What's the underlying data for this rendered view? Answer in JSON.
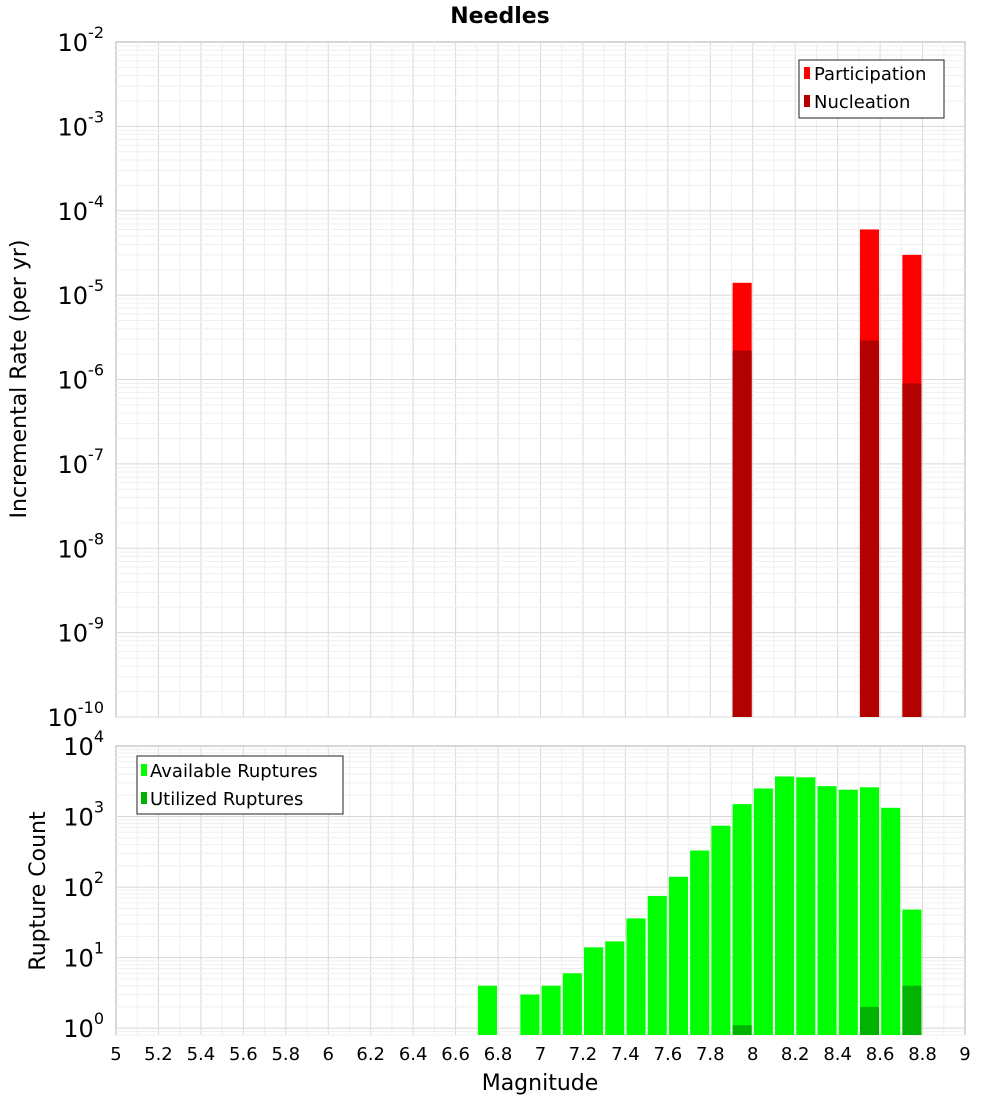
{
  "page_title": "Needles",
  "colors": {
    "participation": "#ff0000",
    "nucleation": "#b30000",
    "available": "#00ff00",
    "utilized": "#00b300"
  },
  "x_axis": {
    "label": "Magnitude",
    "range": [
      5,
      9
    ],
    "ticks": [
      "5",
      "5.2",
      "5.4",
      "5.6",
      "5.8",
      "6",
      "6.2",
      "6.4",
      "6.6",
      "6.8",
      "7",
      "7.2",
      "7.4",
      "7.6",
      "7.8",
      "8",
      "8.2",
      "8.4",
      "8.6",
      "8.8",
      "9"
    ]
  },
  "chart_data": [
    {
      "type": "bar",
      "title": "Needles",
      "xlabel": "Magnitude",
      "ylabel": "Incremental Rate (per yr)",
      "yscale": "log",
      "ylim": [
        1e-10,
        0.01
      ],
      "xlim": [
        5,
        9
      ],
      "bar_width": 0.09,
      "y_ticks": [
        {
          "base": "10",
          "exp": "-10",
          "value": 1e-10
        },
        {
          "base": "10",
          "exp": "-9",
          "value": 1e-09
        },
        {
          "base": "10",
          "exp": "-8",
          "value": 1e-08
        },
        {
          "base": "10",
          "exp": "-7",
          "value": 1e-07
        },
        {
          "base": "10",
          "exp": "-6",
          "value": 1e-06
        },
        {
          "base": "10",
          "exp": "-5",
          "value": 1e-05
        },
        {
          "base": "10",
          "exp": "-4",
          "value": 0.0001
        },
        {
          "base": "10",
          "exp": "-3",
          "value": 0.001
        },
        {
          "base": "10",
          "exp": "-2",
          "value": 0.01
        }
      ],
      "legend": {
        "position": "top-right",
        "entries": [
          "Participation",
          "Nucleation"
        ]
      },
      "grid": true,
      "x": [
        7.95,
        8.55,
        8.75
      ],
      "series": [
        {
          "name": "Participation",
          "color": "#ff0000",
          "values": [
            1.4e-05,
            6e-05,
            3e-05
          ]
        },
        {
          "name": "Nucleation",
          "color": "#b30000",
          "values": [
            2.2e-06,
            2.9e-06,
            9e-07
          ]
        }
      ]
    },
    {
      "type": "bar",
      "title": "",
      "xlabel": "Magnitude",
      "ylabel": "Rupture Count",
      "yscale": "log",
      "ylim": [
        0.8,
        10000
      ],
      "xlim": [
        5,
        9
      ],
      "bar_width": 0.09,
      "y_ticks": [
        {
          "base": "10",
          "exp": "0",
          "value": 1
        },
        {
          "base": "10",
          "exp": "1",
          "value": 10
        },
        {
          "base": "10",
          "exp": "2",
          "value": 100
        },
        {
          "base": "10",
          "exp": "3",
          "value": 1000
        },
        {
          "base": "10",
          "exp": "4",
          "value": 10000
        }
      ],
      "legend": {
        "position": "top-left",
        "entries": [
          "Available Ruptures",
          "Utilized Ruptures"
        ]
      },
      "grid": true,
      "x": [
        6.75,
        6.95,
        7.05,
        7.15,
        7.25,
        7.35,
        7.45,
        7.55,
        7.65,
        7.75,
        7.85,
        7.95,
        8.05,
        8.15,
        8.25,
        8.35,
        8.45,
        8.55,
        8.65,
        8.75
      ],
      "series": [
        {
          "name": "Available Ruptures",
          "color": "#00ff00",
          "values": [
            4,
            3,
            4,
            6,
            14,
            17,
            36,
            75,
            140,
            330,
            740,
            1500,
            2500,
            3700,
            3600,
            2700,
            2400,
            2600,
            1330,
            48
          ]
        },
        {
          "name": "Utilized Ruptures",
          "color": "#00b300",
          "values": [
            null,
            null,
            null,
            null,
            null,
            null,
            null,
            null,
            null,
            null,
            null,
            1.1,
            null,
            null,
            null,
            null,
            null,
            2,
            null,
            4
          ]
        }
      ]
    }
  ]
}
